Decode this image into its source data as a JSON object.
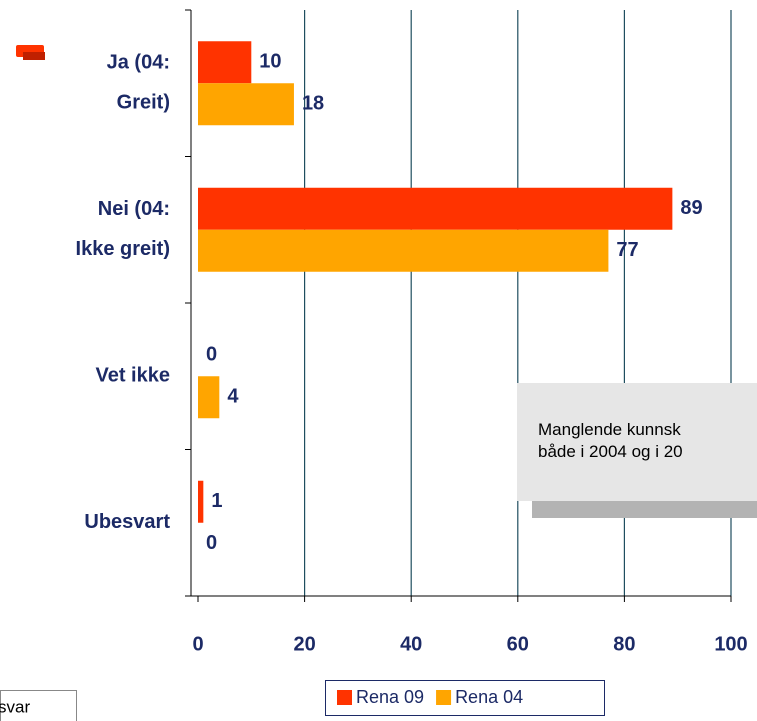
{
  "chart_data": {
    "type": "bar",
    "orientation": "horizontal",
    "categories": [
      "Ja (04:\nGreit)",
      "Nei (04:\nIkke greit)",
      "Vet ikke",
      "Ubesvart"
    ],
    "series": [
      {
        "name": "Rena 09",
        "color": "#ff3300",
        "values": [
          10,
          89,
          0,
          1
        ]
      },
      {
        "name": "Rena 04",
        "color": "#ffa500",
        "values": [
          18,
          77,
          4,
          0
        ]
      }
    ],
    "xlim": [
      0,
      100
    ],
    "xticks": [
      0,
      20,
      40,
      60,
      80,
      100
    ],
    "grid": true,
    "legend": "bottom",
    "annotations": [
      "Manglende kunnsk\nbåde i 2004 og i 20",
      "svar"
    ]
  }
}
